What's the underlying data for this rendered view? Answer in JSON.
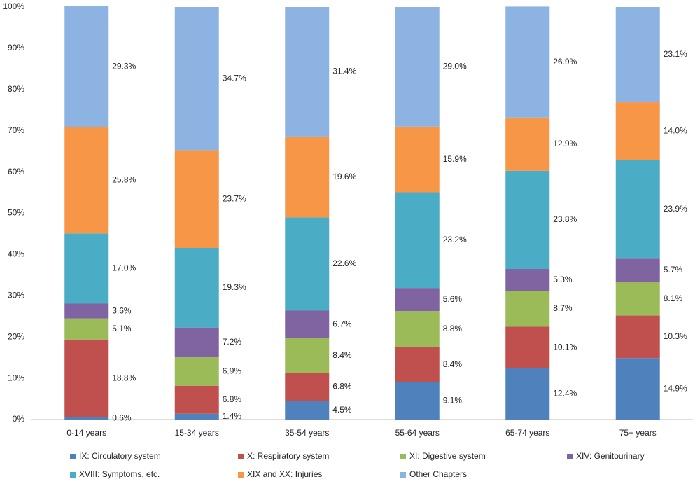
{
  "chart_data": {
    "type": "stacked_bar",
    "categories": [
      "0-14 years",
      "15-34 years",
      "35-54 years",
      "55-64 years",
      "65-74 years",
      "75+ years"
    ],
    "series": [
      {
        "name": "IX: Circulatory system",
        "color": "#4f81bd",
        "values": [
          0.6,
          1.4,
          4.5,
          9.1,
          12.4,
          14.9
        ],
        "value_labels": [
          "0.6%",
          "1.4%",
          "4.5%",
          "9.1%",
          "12.4%",
          "14.9%"
        ]
      },
      {
        "name": "X: Respiratory system",
        "color": "#c0504d",
        "values": [
          18.8,
          6.8,
          6.8,
          8.4,
          10.1,
          10.3
        ],
        "value_labels": [
          "18.8%",
          "6.8%",
          "6.8%",
          "8.4%",
          "10.1%",
          "10.3%"
        ]
      },
      {
        "name": "XI: Digestive system",
        "color": "#9bbb59",
        "values": [
          5.1,
          6.9,
          8.4,
          8.8,
          8.7,
          8.1
        ],
        "value_labels": [
          "5.1%",
          "6.9%",
          "8.4%",
          "8.8%",
          "8.7%",
          "8.1%"
        ]
      },
      {
        "name": "XIV: Genitourinary",
        "color": "#8064a2",
        "values": [
          3.6,
          7.2,
          6.7,
          5.6,
          5.3,
          5.7
        ],
        "value_labels": [
          "3.6%",
          "7.2%",
          "6.7%",
          "5.6%",
          "5.3%",
          "5.7%"
        ]
      },
      {
        "name": "XVIII: Symptoms, etc.",
        "color": "#4bacc6",
        "values": [
          17.0,
          19.3,
          22.6,
          23.2,
          23.8,
          23.9
        ],
        "value_labels": [
          "17.0%",
          "19.3%",
          "22.6%",
          "23.2%",
          "23.8%",
          "23.9%"
        ]
      },
      {
        "name": "XIX and XX: Injuries",
        "color": "#f79646",
        "values": [
          25.8,
          23.7,
          19.6,
          15.9,
          12.9,
          14.0
        ],
        "value_labels": [
          "25.8%",
          "23.7%",
          "19.6%",
          "15.9%",
          "12.9%",
          "14.0%"
        ]
      },
      {
        "name": "Other Chapters",
        "color": "#8db3e2",
        "values": [
          29.3,
          34.7,
          31.4,
          29.0,
          26.9,
          23.1
        ],
        "value_labels": [
          "29.3%",
          "34.7%",
          "31.4%",
          "29.0%",
          "26.9%",
          "23.1%"
        ]
      }
    ],
    "ylim": [
      0,
      100
    ],
    "yticks": [
      {
        "value": 0,
        "label": "0%"
      },
      {
        "value": 10,
        "label": "10%"
      },
      {
        "value": 20,
        "label": "20%"
      },
      {
        "value": 30,
        "label": "30%"
      },
      {
        "value": 40,
        "label": "40%"
      },
      {
        "value": 50,
        "label": "50%"
      },
      {
        "value": 60,
        "label": "60%"
      },
      {
        "value": 70,
        "label": "70%"
      },
      {
        "value": 80,
        "label": "80%"
      },
      {
        "value": 90,
        "label": "90%"
      },
      {
        "value": 100,
        "label": "100%"
      }
    ],
    "grid": false
  }
}
